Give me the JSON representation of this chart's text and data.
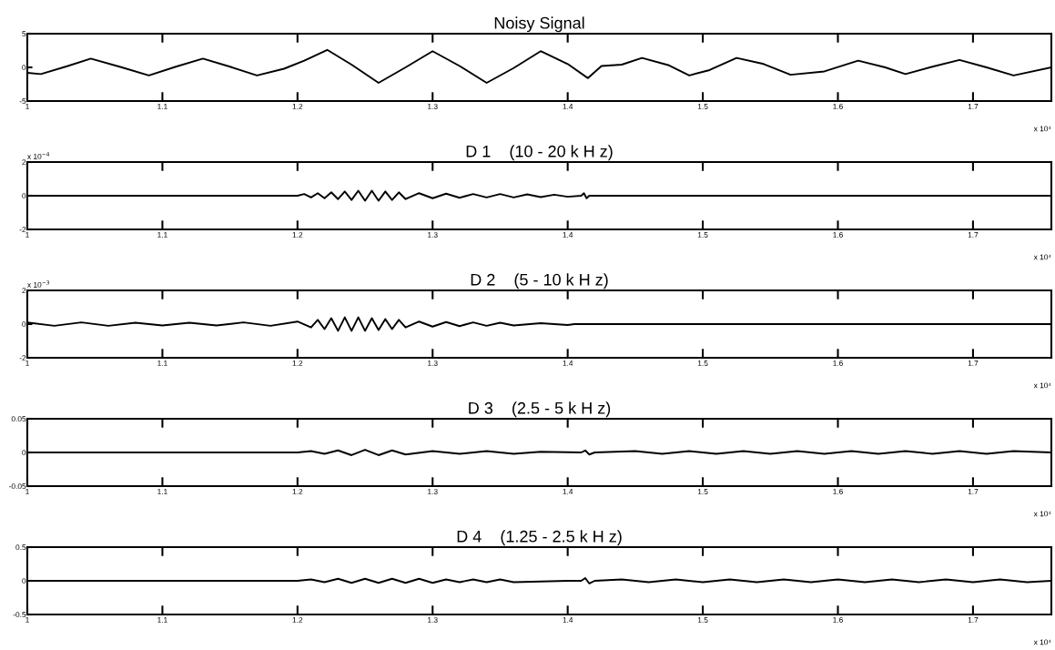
{
  "chart_data": [
    {
      "type": "line",
      "title": "Noisy Signal",
      "annotations": [
        "x 10⁴"
      ],
      "xlim": [
        1,
        1.758
      ],
      "xticks": [
        1,
        1.1,
        1.2,
        1.3,
        1.4,
        1.5,
        1.6,
        1.7
      ],
      "ylim": [
        -5,
        5
      ],
      "yticks": [
        -5,
        0,
        5
      ],
      "grid": false,
      "legend": false,
      "series": [
        {
          "color": "#000000",
          "x": [
            1.0,
            1.01,
            1.03,
            1.047,
            1.07,
            1.09,
            1.11,
            1.13,
            1.15,
            1.17,
            1.19,
            1.205,
            1.222,
            1.24,
            1.26,
            1.28,
            1.3,
            1.32,
            1.34,
            1.36,
            1.38,
            1.4,
            1.415,
            1.425,
            1.44,
            1.455,
            1.475,
            1.49,
            1.505,
            1.525,
            1.545,
            1.565,
            1.59,
            1.615,
            1.635,
            1.65,
            1.67,
            1.69,
            1.71,
            1.73,
            1.758
          ],
          "values": [
            -0.8,
            -1.0,
            0.2,
            1.3,
            0.0,
            -1.2,
            0.1,
            1.3,
            0.1,
            -1.2,
            -0.2,
            1.0,
            2.6,
            0.4,
            -2.3,
            0.0,
            2.4,
            0.2,
            -2.3,
            -0.1,
            2.4,
            0.5,
            -1.6,
            0.2,
            0.4,
            1.4,
            0.3,
            -1.2,
            -0.4,
            1.4,
            0.5,
            -1.1,
            -0.6,
            1.0,
            0.0,
            -1.0,
            0.1,
            1.1,
            0.0,
            -1.2,
            0.0
          ]
        }
      ]
    },
    {
      "type": "line",
      "title": "D 1    (10 - 20 k H z)",
      "annotations": [
        "x 10⁴",
        "x 10$^{−4}$"
      ],
      "xlim": [
        1,
        1.758
      ],
      "xticks": [
        1,
        1.1,
        1.2,
        1.3,
        1.4,
        1.5,
        1.6,
        1.7
      ],
      "ylim": [
        -2,
        2
      ],
      "yticks": [
        -2,
        0,
        2
      ],
      "grid": false,
      "legend": false,
      "series": [
        {
          "color": "#000000",
          "x": [
            1.0,
            1.2,
            1.205,
            1.21,
            1.215,
            1.22,
            1.225,
            1.23,
            1.235,
            1.24,
            1.245,
            1.25,
            1.255,
            1.26,
            1.265,
            1.27,
            1.275,
            1.28,
            1.29,
            1.3,
            1.31,
            1.32,
            1.33,
            1.34,
            1.35,
            1.36,
            1.37,
            1.38,
            1.39,
            1.4,
            1.41,
            1.412,
            1.414,
            1.416,
            1.758
          ],
          "values": [
            0,
            0,
            0.1,
            -0.1,
            0.15,
            -0.15,
            0.2,
            -0.2,
            0.25,
            -0.25,
            0.3,
            -0.3,
            0.3,
            -0.3,
            0.25,
            -0.25,
            0.2,
            -0.2,
            0.15,
            -0.15,
            0.12,
            -0.12,
            0.1,
            -0.1,
            0.1,
            -0.1,
            0.08,
            -0.08,
            0.06,
            -0.06,
            0,
            0.15,
            -0.15,
            0,
            0
          ]
        }
      ]
    },
    {
      "type": "line",
      "title": "D 2    (5 - 10 k H z)",
      "annotations": [
        "x 10⁴",
        "x 10$^{−3}$"
      ],
      "xlim": [
        1,
        1.758
      ],
      "xticks": [
        1,
        1.1,
        1.2,
        1.3,
        1.4,
        1.5,
        1.6,
        1.7
      ],
      "ylim": [
        -2,
        2
      ],
      "yticks": [
        -2,
        0,
        2
      ],
      "grid": false,
      "legend": false,
      "series": [
        {
          "color": "#000000",
          "x": [
            1.0,
            1.02,
            1.04,
            1.06,
            1.08,
            1.1,
            1.12,
            1.14,
            1.16,
            1.18,
            1.2,
            1.21,
            1.215,
            1.22,
            1.225,
            1.23,
            1.235,
            1.24,
            1.245,
            1.25,
            1.255,
            1.26,
            1.265,
            1.27,
            1.275,
            1.28,
            1.29,
            1.3,
            1.31,
            1.32,
            1.33,
            1.34,
            1.35,
            1.36,
            1.38,
            1.4,
            1.405,
            1.758
          ],
          "values": [
            0.1,
            -0.1,
            0.1,
            -0.1,
            0.08,
            -0.08,
            0.08,
            -0.08,
            0.1,
            -0.1,
            0.15,
            -0.2,
            0.25,
            -0.3,
            0.35,
            -0.4,
            0.4,
            -0.4,
            0.4,
            -0.4,
            0.35,
            -0.35,
            0.3,
            -0.3,
            0.25,
            -0.2,
            0.15,
            -0.15,
            0.12,
            -0.12,
            0.1,
            -0.1,
            0.08,
            -0.08,
            0.05,
            -0.05,
            0,
            0
          ]
        }
      ]
    },
    {
      "type": "line",
      "title": "D 3    (2.5 - 5 k H z)",
      "annotations": [
        "x 10⁴"
      ],
      "xlim": [
        1,
        1.758
      ],
      "xticks": [
        1,
        1.1,
        1.2,
        1.3,
        1.4,
        1.5,
        1.6,
        1.7
      ],
      "ylim": [
        -0.05,
        0.05
      ],
      "yticks": [
        -0.05,
        0,
        0.05
      ],
      "grid": false,
      "legend": false,
      "series": [
        {
          "color": "#000000",
          "x": [
            1.0,
            1.2,
            1.21,
            1.22,
            1.23,
            1.24,
            1.25,
            1.26,
            1.27,
            1.28,
            1.3,
            1.32,
            1.34,
            1.36,
            1.38,
            1.41,
            1.413,
            1.416,
            1.42,
            1.45,
            1.47,
            1.49,
            1.51,
            1.53,
            1.55,
            1.57,
            1.59,
            1.61,
            1.63,
            1.65,
            1.67,
            1.69,
            1.71,
            1.73,
            1.758
          ],
          "values": [
            0,
            0,
            0.002,
            -0.002,
            0.003,
            -0.004,
            0.004,
            -0.004,
            0.003,
            -0.003,
            0.002,
            -0.002,
            0.002,
            -0.002,
            0.001,
            0,
            0.003,
            -0.003,
            0,
            0.002,
            -0.002,
            0.002,
            -0.002,
            0.002,
            -0.002,
            0.002,
            -0.002,
            0.002,
            -0.002,
            0.002,
            -0.002,
            0.002,
            -0.002,
            0.002,
            0
          ]
        }
      ]
    },
    {
      "type": "line",
      "title": "D 4    (1.25 - 2.5 k H z)",
      "annotations": [
        "x 10⁴"
      ],
      "xlim": [
        1,
        1.758
      ],
      "xticks": [
        1,
        1.1,
        1.2,
        1.3,
        1.4,
        1.5,
        1.6,
        1.7
      ],
      "ylim": [
        -0.5,
        0.5
      ],
      "yticks": [
        -0.5,
        0,
        0.5
      ],
      "grid": false,
      "legend": false,
      "series": [
        {
          "color": "#000000",
          "x": [
            1.0,
            1.2,
            1.21,
            1.22,
            1.23,
            1.24,
            1.25,
            1.26,
            1.27,
            1.28,
            1.29,
            1.3,
            1.31,
            1.32,
            1.33,
            1.34,
            1.35,
            1.36,
            1.4,
            1.41,
            1.413,
            1.416,
            1.42,
            1.44,
            1.46,
            1.48,
            1.5,
            1.52,
            1.54,
            1.56,
            1.58,
            1.6,
            1.62,
            1.64,
            1.66,
            1.68,
            1.7,
            1.72,
            1.74,
            1.758
          ],
          "values": [
            0,
            0,
            0.02,
            -0.02,
            0.03,
            -0.03,
            0.03,
            -0.03,
            0.03,
            -0.03,
            0.03,
            -0.03,
            0.02,
            -0.02,
            0.02,
            -0.02,
            0.02,
            -0.02,
            0,
            0,
            0.04,
            -0.04,
            0,
            0.02,
            -0.02,
            0.02,
            -0.02,
            0.02,
            -0.02,
            0.02,
            -0.02,
            0.02,
            -0.02,
            0.02,
            -0.02,
            0.02,
            -0.02,
            0.02,
            -0.02,
            0
          ]
        }
      ]
    }
  ]
}
